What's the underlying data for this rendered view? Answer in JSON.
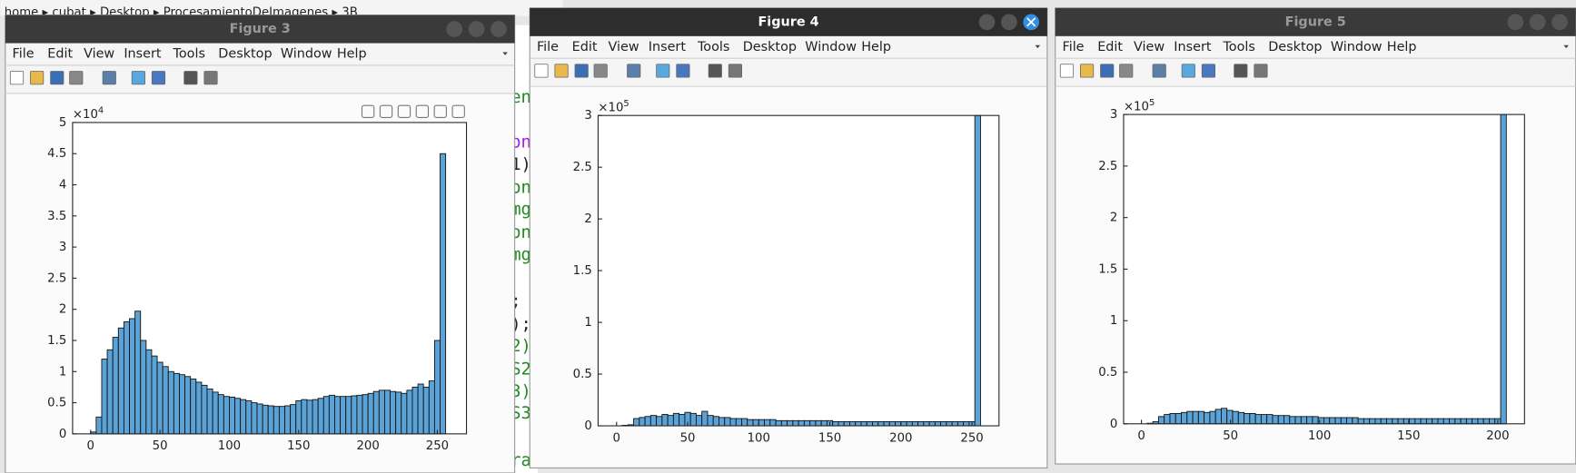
{
  "breadcrumb": "home ▸ cubat ▸ Desktop ▸ ProcesamientoDeImagenes ▸ 3B",
  "code_fragments": [
    {
      "text": "en",
      "color": "#1f8a1f"
    },
    {
      "text": "on",
      "color": "#a020f0"
    },
    {
      "text": "1)",
      "color": "#222222"
    },
    {
      "text": "on",
      "color": "#1f8a1f"
    },
    {
      "text": "mg",
      "color": "#1f8a1f"
    },
    {
      "text": "on",
      "color": "#1f8a1f"
    },
    {
      "text": "mg",
      "color": "#1f8a1f"
    },
    {
      "text": ";",
      "color": "#222222"
    },
    {
      "text": ");",
      "color": "#222222"
    },
    {
      "text": "2)",
      "color": "#1f8a1f"
    },
    {
      "text": "S2",
      "color": "#1f8a1f"
    },
    {
      "text": "3)",
      "color": "#1f8a1f"
    },
    {
      "text": "S3",
      "color": "#1f8a1f"
    },
    {
      "text": "ra",
      "color": "#1f8a1f"
    }
  ],
  "menu": [
    "File",
    "Edit",
    "View",
    "Insert",
    "Tools",
    "Desktop",
    "Window",
    "Help"
  ],
  "windows": [
    {
      "title": "Figure 3",
      "active": false,
      "chart_data": {
        "type": "histogram",
        "color": "#5ba3d6",
        "y_scale_base": "×10",
        "y_scale_exponent": "4",
        "xlim": [
          -13,
          271
        ],
        "ylim": [
          0,
          5
        ],
        "xticks": [
          0,
          50,
          100,
          150,
          200,
          250
        ],
        "yticks": [
          0,
          0.5,
          1,
          1.5,
          2,
          2.5,
          3,
          3.5,
          4,
          4.5,
          5
        ],
        "bins": [
          0,
          4,
          8,
          12,
          16,
          20,
          24,
          28,
          32,
          36,
          40,
          44,
          48,
          52,
          56,
          60,
          64,
          68,
          72,
          76,
          80,
          84,
          88,
          92,
          96,
          100,
          104,
          108,
          112,
          116,
          120,
          124,
          128,
          132,
          136,
          140,
          144,
          148,
          152,
          156,
          160,
          164,
          168,
          172,
          176,
          180,
          184,
          188,
          192,
          196,
          200,
          204,
          208,
          212,
          216,
          220,
          224,
          228,
          232,
          236,
          240,
          244,
          248,
          252,
          256
        ],
        "values": [
          0.03,
          0.27,
          1.2,
          1.35,
          1.55,
          1.7,
          1.8,
          1.85,
          1.97,
          1.5,
          1.35,
          1.25,
          1.15,
          1.08,
          1.0,
          0.97,
          0.95,
          0.92,
          0.88,
          0.83,
          0.78,
          0.72,
          0.67,
          0.63,
          0.6,
          0.59,
          0.57,
          0.55,
          0.53,
          0.5,
          0.48,
          0.46,
          0.45,
          0.44,
          0.44,
          0.45,
          0.47,
          0.53,
          0.55,
          0.54,
          0.55,
          0.57,
          0.6,
          0.62,
          0.6,
          0.6,
          0.6,
          0.61,
          0.62,
          0.63,
          0.65,
          0.68,
          0.7,
          0.7,
          0.68,
          0.67,
          0.65,
          0.7,
          0.75,
          0.8,
          0.75,
          0.85,
          1.5,
          4.5
        ]
      }
    },
    {
      "title": "Figure 4",
      "active": true,
      "chart_data": {
        "type": "histogram",
        "color": "#5ba3d6",
        "y_scale_base": "×10",
        "y_scale_exponent": "5",
        "xlim": [
          -13,
          269
        ],
        "ylim": [
          0,
          3
        ],
        "xticks": [
          0,
          50,
          100,
          150,
          200,
          250
        ],
        "yticks": [
          0,
          0.5,
          1,
          1.5,
          2,
          2.5,
          3
        ],
        "bins": [
          0,
          4,
          8,
          12,
          16,
          20,
          24,
          28,
          32,
          36,
          40,
          44,
          48,
          52,
          56,
          60,
          64,
          68,
          72,
          76,
          80,
          84,
          88,
          92,
          96,
          100,
          104,
          108,
          112,
          116,
          120,
          124,
          128,
          132,
          136,
          140,
          144,
          148,
          152,
          156,
          160,
          164,
          168,
          172,
          176,
          180,
          184,
          188,
          192,
          196,
          200,
          204,
          208,
          212,
          216,
          220,
          224,
          228,
          232,
          236,
          240,
          244,
          248,
          252,
          256
        ],
        "values": [
          0,
          0.005,
          0.01,
          0.07,
          0.08,
          0.09,
          0.1,
          0.09,
          0.11,
          0.1,
          0.12,
          0.11,
          0.13,
          0.12,
          0.1,
          0.14,
          0.1,
          0.09,
          0.08,
          0.08,
          0.07,
          0.07,
          0.07,
          0.06,
          0.06,
          0.06,
          0.06,
          0.06,
          0.05,
          0.05,
          0.05,
          0.05,
          0.05,
          0.05,
          0.05,
          0.05,
          0.05,
          0.05,
          0.04,
          0.04,
          0.04,
          0.04,
          0.04,
          0.04,
          0.04,
          0.04,
          0.04,
          0.04,
          0.04,
          0.04,
          0.04,
          0.04,
          0.04,
          0.04,
          0.04,
          0.04,
          0.04,
          0.04,
          0.04,
          0.04,
          0.04,
          0.04,
          0.04,
          3
        ]
      }
    },
    {
      "title": "Figure 5",
      "active": false,
      "chart_data": {
        "type": "histogram",
        "color": "#5ba3d6",
        "y_scale_base": "×10",
        "y_scale_exponent": "5",
        "xlim": [
          -10,
          215
        ],
        "ylim": [
          0,
          3
        ],
        "xticks": [
          0,
          50,
          100,
          150,
          200
        ],
        "yticks": [
          0,
          0.5,
          1,
          1.5,
          2,
          2.5,
          3
        ],
        "bins": [
          0,
          3.2,
          6.4,
          9.6,
          12.8,
          16,
          19.2,
          22.4,
          25.6,
          28.8,
          32,
          35.2,
          38.4,
          41.6,
          44.8,
          48,
          51.2,
          54.4,
          57.6,
          60.8,
          64,
          67.2,
          70.4,
          73.6,
          76.8,
          80,
          83.2,
          86.4,
          89.6,
          92.8,
          96,
          99.2,
          102.4,
          105.6,
          108.8,
          112,
          115.2,
          118.4,
          121.6,
          124.8,
          128,
          131.2,
          134.4,
          137.6,
          140.8,
          144,
          147.2,
          150.4,
          153.6,
          156.8,
          160,
          163.2,
          166.4,
          169.6,
          172.8,
          176,
          179.2,
          182.4,
          185.6,
          188.8,
          192,
          195.2,
          198.4,
          201.6,
          204.8
        ],
        "values": [
          0,
          0.005,
          0.02,
          0.07,
          0.09,
          0.1,
          0.1,
          0.11,
          0.12,
          0.12,
          0.12,
          0.11,
          0.12,
          0.14,
          0.15,
          0.13,
          0.12,
          0.11,
          0.1,
          0.1,
          0.09,
          0.09,
          0.09,
          0.08,
          0.08,
          0.08,
          0.07,
          0.07,
          0.07,
          0.07,
          0.07,
          0.06,
          0.06,
          0.06,
          0.06,
          0.06,
          0.06,
          0.06,
          0.05,
          0.05,
          0.05,
          0.05,
          0.05,
          0.05,
          0.05,
          0.05,
          0.05,
          0.05,
          0.05,
          0.05,
          0.05,
          0.05,
          0.05,
          0.05,
          0.05,
          0.05,
          0.05,
          0.05,
          0.05,
          0.05,
          0.05,
          0.05,
          0.05,
          3
        ]
      }
    }
  ]
}
